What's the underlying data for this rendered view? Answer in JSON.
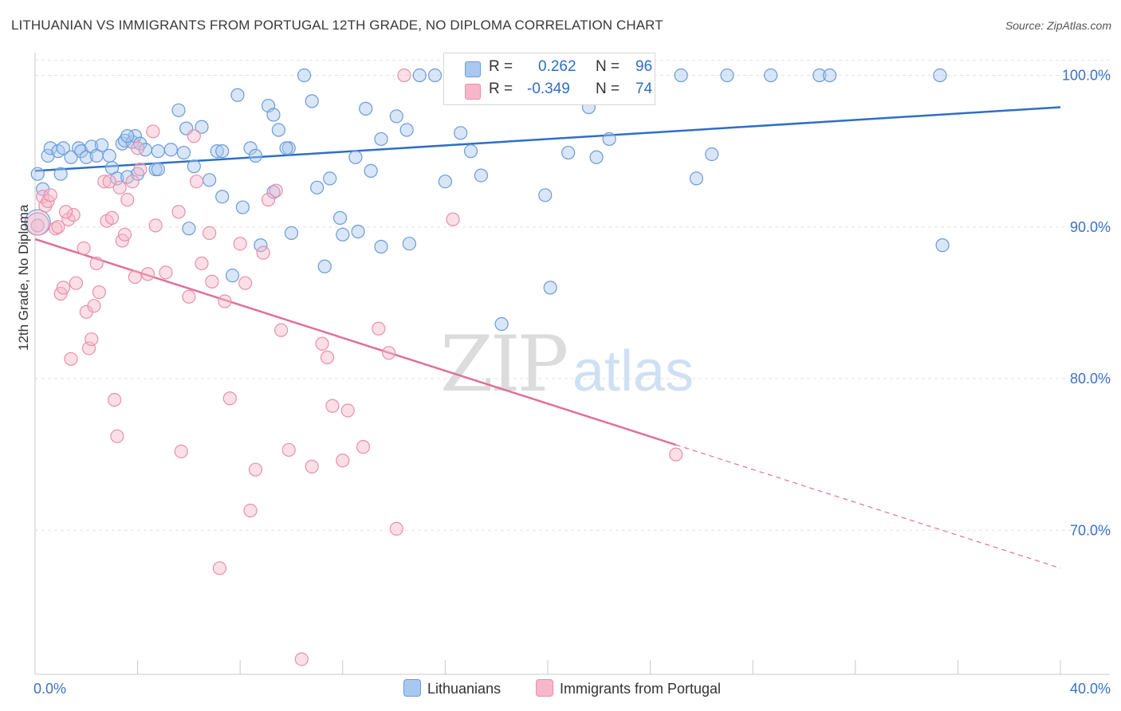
{
  "header": {
    "title": "LITHUANIAN VS IMMIGRANTS FROM PORTUGAL 12TH GRADE, NO DIPLOMA CORRELATION CHART",
    "source": "Source: ZipAtlas.com"
  },
  "stats": {
    "r_label": "R =",
    "n_label": "N =",
    "rows": [
      {
        "r": "0.262",
        "n": "96"
      },
      {
        "r": "-0.349",
        "n": "74"
      }
    ]
  },
  "legend": {
    "items": [
      {
        "label": "Lithuanians"
      },
      {
        "label": "Immigrants from Portugal"
      }
    ]
  },
  "watermark": {
    "part1": "ZIP",
    "part2": "atlas"
  },
  "chart_data": {
    "type": "scatter",
    "title": "LITHUANIAN VS IMMIGRANTS FROM PORTUGAL 12TH GRADE, NO DIPLOMA CORRELATION CHART",
    "xlabel": "",
    "ylabel": "12th Grade, No Diploma",
    "xlim": [
      0,
      40
    ],
    "ylim": [
      60.5,
      101.5
    ],
    "x_tick_labels": [
      "0.0%",
      "40.0%"
    ],
    "y_ticks": [
      70,
      80,
      90,
      100
    ],
    "y_tick_labels": [
      "70.0%",
      "80.0%",
      "90.0%",
      "100.0%"
    ],
    "grid": true,
    "legend_position": "bottom",
    "colors": {
      "blue_fill": "#a9c8ef",
      "blue_stroke": "#6b9bd8",
      "blue_line": "#2f6fc4",
      "pink_fill": "#f6b7ca",
      "pink_stroke": "#e890ab",
      "pink_line": "#e0709a",
      "tick_label": "#3b72c4"
    },
    "series": [
      {
        "name": "Lithuanians",
        "trend": {
          "x": [
            0,
            40
          ],
          "y": [
            93.7,
            97.9
          ],
          "dashed_from_x": null
        },
        "points": [
          [
            0.1,
            93.5
          ],
          [
            0.5,
            94.7
          ],
          [
            0.6,
            95.2
          ],
          [
            0.9,
            95.0
          ],
          [
            1.1,
            95.2
          ],
          [
            1.4,
            94.6
          ],
          [
            1.7,
            95.2
          ],
          [
            1.8,
            95.0
          ],
          [
            2.0,
            94.6
          ],
          [
            2.2,
            95.3
          ],
          [
            2.4,
            94.7
          ],
          [
            2.6,
            95.4
          ],
          [
            2.9,
            94.7
          ],
          [
            3.0,
            93.9
          ],
          [
            3.2,
            93.2
          ],
          [
            3.4,
            95.5
          ],
          [
            3.5,
            95.7
          ],
          [
            3.6,
            93.3
          ],
          [
            3.8,
            95.6
          ],
          [
            3.9,
            96.0
          ],
          [
            4.1,
            95.5
          ],
          [
            4.3,
            95.1
          ],
          [
            4.7,
            93.8
          ],
          [
            4.8,
            93.8
          ],
          [
            4.8,
            95.0
          ],
          [
            5.3,
            95.1
          ],
          [
            5.6,
            97.7
          ],
          [
            5.8,
            94.9
          ],
          [
            5.9,
            96.5
          ],
          [
            6.2,
            94.0
          ],
          [
            6.5,
            96.6
          ],
          [
            6.8,
            93.1
          ],
          [
            7.1,
            95.0
          ],
          [
            7.3,
            95.0
          ],
          [
            7.7,
            86.8
          ],
          [
            7.9,
            98.7
          ],
          [
            8.1,
            91.3
          ],
          [
            8.4,
            95.2
          ],
          [
            8.6,
            94.7
          ],
          [
            8.8,
            88.8
          ],
          [
            9.1,
            98.0
          ],
          [
            9.3,
            97.4
          ],
          [
            9.5,
            96.4
          ],
          [
            9.9,
            95.2
          ],
          [
            10.5,
            100.0
          ],
          [
            10.8,
            98.3
          ],
          [
            11.3,
            87.4
          ],
          [
            11.5,
            93.2
          ],
          [
            11.9,
            90.6
          ],
          [
            12.5,
            94.6
          ],
          [
            12.6,
            89.7
          ],
          [
            12.9,
            97.8
          ],
          [
            13.1,
            93.7
          ],
          [
            13.5,
            95.8
          ],
          [
            14.1,
            97.3
          ],
          [
            14.5,
            96.4
          ],
          [
            14.6,
            88.9
          ],
          [
            15.0,
            100.0
          ],
          [
            15.6,
            100.0
          ],
          [
            16.0,
            93.0
          ],
          [
            16.6,
            96.2
          ],
          [
            17.4,
            93.4
          ],
          [
            18.0,
            100.0
          ],
          [
            18.2,
            83.6
          ],
          [
            18.8,
            100.0
          ],
          [
            19.1,
            100.0
          ],
          [
            19.9,
            92.1
          ],
          [
            20.1,
            86.0
          ],
          [
            20.8,
            94.9
          ],
          [
            21.6,
            97.9
          ],
          [
            21.9,
            94.6
          ],
          [
            22.4,
            95.8
          ],
          [
            23.1,
            100.0
          ],
          [
            23.6,
            100.0
          ],
          [
            25.2,
            100.0
          ],
          [
            25.8,
            93.2
          ],
          [
            26.4,
            94.8
          ],
          [
            27.0,
            100.0
          ],
          [
            28.7,
            100.0
          ],
          [
            30.6,
            100.0
          ],
          [
            31.0,
            100.0
          ],
          [
            35.3,
            100.0
          ],
          [
            35.4,
            88.8
          ],
          [
            3.6,
            96.0
          ],
          [
            6.0,
            89.9
          ],
          [
            9.8,
            95.2
          ],
          [
            11.0,
            92.6
          ],
          [
            10.0,
            89.6
          ],
          [
            12.0,
            89.5
          ],
          [
            9.3,
            92.3
          ],
          [
            13.5,
            88.7
          ],
          [
            7.3,
            92.0
          ],
          [
            4.0,
            93.5
          ],
          [
            17.0,
            95.0
          ],
          [
            1.0,
            93.5
          ],
          [
            0.3,
            92.5
          ]
        ]
      },
      {
        "name": "Immigrants from Portugal",
        "trend": {
          "x": [
            0,
            40
          ],
          "y": [
            89.2,
            67.5
          ],
          "dashed_from_x": 25.0
        },
        "points": [
          [
            0.1,
            90.1
          ],
          [
            0.3,
            92.0
          ],
          [
            0.4,
            91.4
          ],
          [
            0.5,
            91.7
          ],
          [
            0.6,
            92.1
          ],
          [
            0.8,
            89.9
          ],
          [
            0.9,
            90.0
          ],
          [
            1.0,
            85.6
          ],
          [
            1.1,
            86.0
          ],
          [
            1.3,
            90.5
          ],
          [
            1.4,
            81.3
          ],
          [
            1.5,
            90.8
          ],
          [
            1.6,
            86.3
          ],
          [
            1.9,
            88.6
          ],
          [
            2.0,
            84.4
          ],
          [
            2.1,
            82.0
          ],
          [
            2.2,
            82.6
          ],
          [
            2.3,
            84.8
          ],
          [
            2.4,
            87.6
          ],
          [
            2.5,
            85.7
          ],
          [
            2.7,
            93.0
          ],
          [
            2.8,
            90.4
          ],
          [
            3.0,
            90.6
          ],
          [
            3.1,
            78.6
          ],
          [
            3.2,
            76.2
          ],
          [
            3.3,
            92.6
          ],
          [
            3.4,
            89.1
          ],
          [
            3.5,
            89.5
          ],
          [
            3.6,
            91.8
          ],
          [
            3.8,
            93.0
          ],
          [
            3.9,
            86.7
          ],
          [
            4.1,
            93.8
          ],
          [
            4.4,
            86.9
          ],
          [
            4.6,
            96.3
          ],
          [
            4.7,
            90.1
          ],
          [
            5.1,
            87.0
          ],
          [
            5.6,
            91.0
          ],
          [
            5.7,
            75.2
          ],
          [
            6.0,
            85.4
          ],
          [
            6.3,
            93.0
          ],
          [
            6.5,
            87.6
          ],
          [
            6.8,
            89.6
          ],
          [
            6.9,
            86.4
          ],
          [
            7.2,
            67.5
          ],
          [
            7.4,
            85.1
          ],
          [
            7.6,
            78.7
          ],
          [
            8.0,
            88.9
          ],
          [
            8.2,
            86.3
          ],
          [
            8.4,
            71.3
          ],
          [
            8.6,
            74.0
          ],
          [
            8.9,
            88.3
          ],
          [
            9.1,
            91.8
          ],
          [
            9.4,
            92.4
          ],
          [
            9.6,
            83.2
          ],
          [
            9.9,
            75.3
          ],
          [
            10.4,
            61.5
          ],
          [
            10.8,
            74.2
          ],
          [
            11.2,
            82.3
          ],
          [
            11.4,
            81.4
          ],
          [
            11.6,
            78.2
          ],
          [
            12.0,
            74.6
          ],
          [
            12.2,
            77.9
          ],
          [
            12.8,
            75.5
          ],
          [
            13.4,
            83.3
          ],
          [
            13.8,
            81.7
          ],
          [
            14.1,
            70.1
          ],
          [
            14.4,
            100.0
          ],
          [
            16.3,
            90.5
          ],
          [
            19.9,
            100.0
          ],
          [
            25.0,
            75.0
          ],
          [
            1.2,
            91.0
          ],
          [
            2.9,
            93.0
          ],
          [
            4.0,
            95.2
          ],
          [
            6.2,
            96.0
          ]
        ]
      }
    ]
  }
}
